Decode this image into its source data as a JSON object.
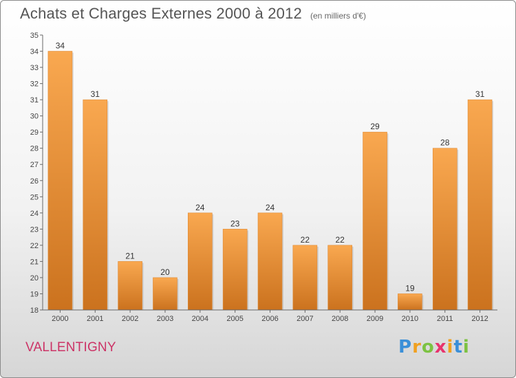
{
  "header": {
    "title": "Achats et Charges Externes 2000 à 2012",
    "subtitle": "(en milliers d'€)"
  },
  "footer": {
    "commune": "VALLENTIGNY",
    "logo_text": "Proxiti"
  },
  "colors": {
    "bar_light": "#f8a64e",
    "bar_dark": "#cd7420",
    "axis": "#666666",
    "commune": "#cc3366"
  },
  "chart_data": {
    "type": "bar",
    "title": "Achats et Charges Externes 2000 à 2012",
    "subtitle": "(en milliers d'€)",
    "xlabel": "",
    "ylabel": "",
    "categories": [
      "2000",
      "2001",
      "2002",
      "2003",
      "2004",
      "2005",
      "2006",
      "2007",
      "2008",
      "2009",
      "2010",
      "2011",
      "2012"
    ],
    "values": [
      34,
      31,
      21,
      20,
      24,
      23,
      24,
      22,
      22,
      29,
      19,
      28,
      31
    ],
    "ylim": [
      18,
      35
    ],
    "yticks": [
      18,
      19,
      20,
      21,
      22,
      23,
      24,
      25,
      26,
      27,
      28,
      29,
      30,
      31,
      32,
      33,
      34,
      35
    ],
    "grid": false,
    "data_labels": true
  }
}
